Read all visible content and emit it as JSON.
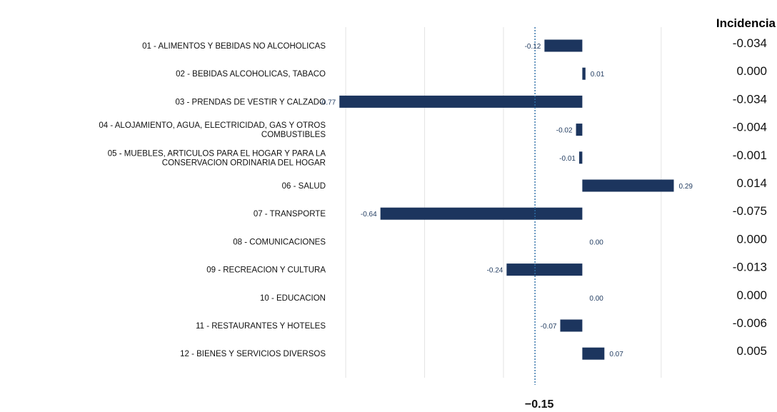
{
  "chart_data": {
    "type": "bar",
    "orientation": "horizontal",
    "categories": [
      "01 - ALIMENTOS Y BEBIDAS NO ALCOHOLICAS",
      "02 - BEBIDAS ALCOHOLICAS, TABACO",
      "03 - PRENDAS DE VESTIR Y CALZADO",
      "04 - ALOJAMIENTO, AGUA, ELECTRICIDAD, GAS Y OTROS COMBUSTIBLES",
      "05 - MUEBLES, ARTICULOS PARA EL HOGAR Y PARA LA CONSERVACION ORDINARIA DEL HOGAR",
      "06 - SALUD",
      "07 - TRANSPORTE",
      "08 - COMUNICACIONES",
      "09 - RECREACION Y CULTURA",
      "10 - EDUCACION",
      "11 - RESTAURANTES Y HOTELES",
      "12 - BIENES Y SERVICIOS DIVERSOS"
    ],
    "category_lines": [
      [
        "01 - ALIMENTOS Y BEBIDAS NO ALCOHOLICAS"
      ],
      [
        "02 - BEBIDAS ALCOHOLICAS, TABACO"
      ],
      [
        "03 - PRENDAS DE VESTIR Y CALZADO"
      ],
      [
        "04 - ALOJAMIENTO, AGUA, ELECTRICIDAD, GAS Y OTROS",
        "COMBUSTIBLES"
      ],
      [
        "05 - MUEBLES, ARTICULOS PARA EL HOGAR Y PARA LA",
        "CONSERVACION ORDINARIA DEL HOGAR"
      ],
      [
        "06 - SALUD"
      ],
      [
        "07 - TRANSPORTE"
      ],
      [
        "08 - COMUNICACIONES"
      ],
      [
        "09 - RECREACION Y CULTURA"
      ],
      [
        "10 - EDUCACION"
      ],
      [
        "11 - RESTAURANTES Y HOTELES"
      ],
      [
        "12 - BIENES Y SERVICIOS DIVERSOS"
      ]
    ],
    "values": [
      -0.12,
      0.01,
      -0.77,
      -0.02,
      -0.01,
      0.29,
      -0.64,
      0.0,
      -0.24,
      0.0,
      -0.07,
      0.07
    ],
    "value_labels": [
      "-0.12",
      "0.01",
      "-0.77",
      "-0.02",
      "-0.01",
      "0.29",
      "-0.64",
      "0.00",
      "-0.24",
      "0.00",
      "-0.07",
      "0.07"
    ],
    "incidencia_header": "Incidencia",
    "incidencia": [
      "-0.034",
      "0.000",
      "-0.034",
      "-0.004",
      "-0.001",
      "0.014",
      "-0.075",
      "0.000",
      "-0.013",
      "0.000",
      "-0.006",
      "0.005"
    ],
    "reference_value": -0.15,
    "reference_label": "−0.15",
    "xlim": [
      -0.8,
      0.35
    ],
    "grid": true,
    "bar_color": "#1c355e",
    "reference_line_color": "#2e6fa7"
  }
}
